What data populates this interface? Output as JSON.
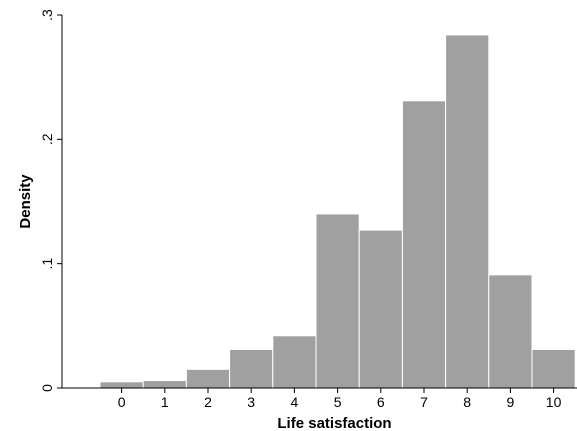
{
  "chart_data": {
    "type": "bar",
    "xlabel": "Life satisfaction",
    "ylabel": "Density",
    "categories": [
      "0",
      "1",
      "2",
      "3",
      "4",
      "5",
      "6",
      "7",
      "8",
      "9",
      "10"
    ],
    "values": [
      0.005,
      0.006,
      0.015,
      0.031,
      0.042,
      0.14,
      0.127,
      0.231,
      0.284,
      0.091,
      0.031
    ],
    "ylim": [
      0,
      0.3
    ],
    "yticks": [
      0,
      0.1,
      0.2,
      0.3
    ],
    "ytick_labels": [
      "0",
      ".1",
      ".2",
      ".3"
    ],
    "grid": false,
    "bar_color": "#a0a0a0"
  }
}
